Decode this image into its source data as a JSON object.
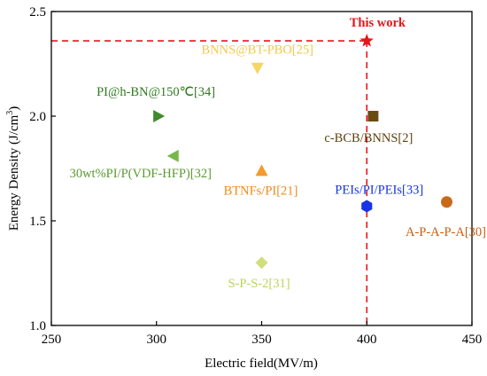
{
  "chart_data": {
    "type": "scatter",
    "title": "",
    "xlabel": "Electric field(MV/m)",
    "ylabel": "Energy Density (J/cm³)",
    "xlim": [
      250,
      450
    ],
    "ylim": [
      1.0,
      2.5
    ],
    "x_ticks": [
      "250",
      "300",
      "350",
      "400",
      "450"
    ],
    "y_ticks": [
      "1.0",
      "1.5",
      "2.0",
      "2.5"
    ],
    "grid": false,
    "guide_lines": {
      "x": 400,
      "y": 2.36,
      "color": "#e8141b",
      "style": "dashed"
    },
    "points": [
      {
        "label": "This work",
        "x": 400,
        "y": 2.36,
        "marker": "star",
        "color": "#e8141b",
        "label_color": "#e8141b",
        "bold": true
      },
      {
        "label": "BNNS@BT-PBO[25]",
        "x": 348,
        "y": 2.23,
        "marker": "triangle-down",
        "color": "#f6d562",
        "label_color": "#f2c94c"
      },
      {
        "label": "PI@h-BN@150℃[34]",
        "x": 301,
        "y": 2.0,
        "marker": "triangle-right",
        "color": "#3f8a2a",
        "label_color": "#2f7a1f"
      },
      {
        "label": "c-BCB/BNNS[2]",
        "x": 403,
        "y": 2.0,
        "marker": "square",
        "color": "#6b4b12",
        "label_color": "#5c3f0e"
      },
      {
        "label": "30wt%PI/P(VDF-HFP)[32]",
        "x": 308,
        "y": 1.81,
        "marker": "triangle-left",
        "color": "#77b84c",
        "label_color": "#5b9a32"
      },
      {
        "label": "BTNFs/PI[21]",
        "x": 350,
        "y": 1.74,
        "marker": "triangle-up",
        "color": "#f59a2d",
        "label_color": "#ef8a1a"
      },
      {
        "label": "PEIs/PI/PEIs[33]",
        "x": 400,
        "y": 1.57,
        "marker": "hexagon",
        "color": "#1633e6",
        "label_color": "#1633e6"
      },
      {
        "label": "A-P-A-P-A[30]",
        "x": 438,
        "y": 1.59,
        "marker": "circle",
        "color": "#c96a1b",
        "label_color": "#c55e12"
      },
      {
        "label": "S-P-S-2[31]",
        "x": 350,
        "y": 1.3,
        "marker": "diamond",
        "color": "#cfe07a",
        "label_color": "#bcd35a"
      }
    ]
  }
}
